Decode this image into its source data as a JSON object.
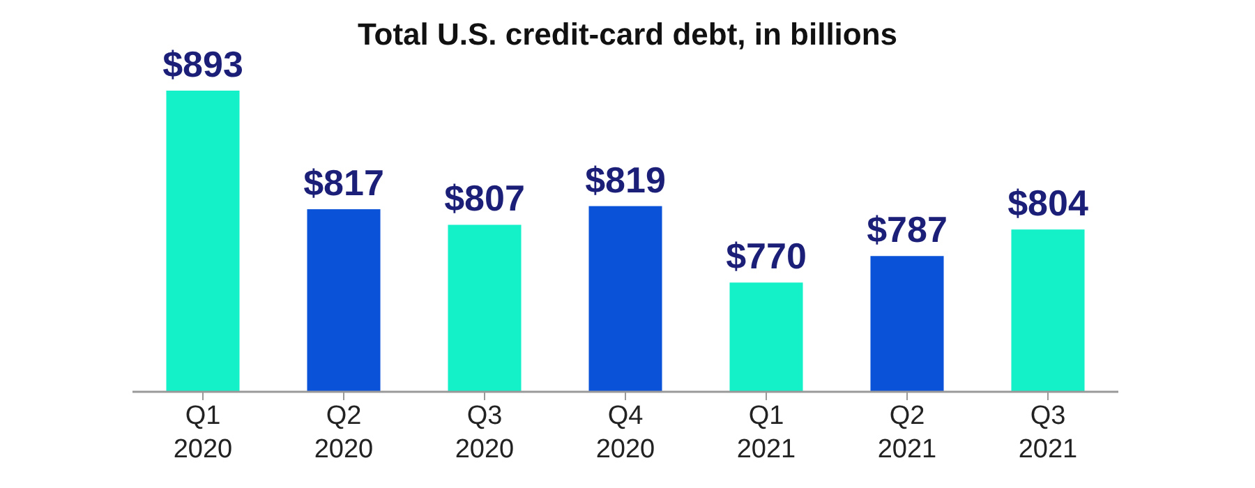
{
  "chart_data": {
    "type": "bar",
    "title": "Total U.S. credit-card debt, in billions",
    "categories": [
      "Q1 2020",
      "Q2 2020",
      "Q3 2020",
      "Q4 2020",
      "Q1 2021",
      "Q2 2021",
      "Q3 2021"
    ],
    "values": [
      893,
      817,
      807,
      819,
      770,
      787,
      804
    ],
    "colors": [
      "#14f0c8",
      "#0a52d8",
      "#14f0c8",
      "#0a52d8",
      "#14f0c8",
      "#0a52d8",
      "#14f0c8"
    ],
    "value_labels": [
      "$893",
      "$817",
      "$807",
      "$819",
      "$770",
      "$787",
      "$804"
    ],
    "ylim": [
      700,
      893
    ],
    "tick_labels": "x"
  }
}
